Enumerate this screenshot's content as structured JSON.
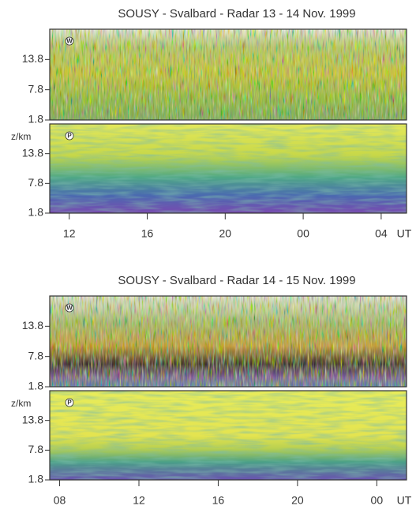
{
  "chart_data": [
    {
      "type": "heatmap",
      "title": "SOUSY - Svalbard - Radar   13 - 14 Nov. 1999",
      "panels": [
        {
          "label": "W"
        },
        {
          "label": "P"
        }
      ],
      "ylabel": "z/km",
      "ylim": [
        1.8,
        19.8
      ],
      "yticks": [
        1.8,
        7.8,
        13.8
      ],
      "xlabel": "UT",
      "xlim": [
        11,
        29.3
      ],
      "xticks": [
        12,
        16,
        20,
        {
          "value": 24,
          "label": "00"
        },
        {
          "value": 28,
          "label": "04"
        }
      ]
    },
    {
      "type": "heatmap",
      "title": "SOUSY - Svalbard - Radar   14 - 15 Nov. 1999",
      "panels": [
        {
          "label": "W"
        },
        {
          "label": "P"
        }
      ],
      "ylabel": "z/km",
      "ylim": [
        1.8,
        19.8
      ],
      "yticks": [
        1.8,
        7.8,
        13.8
      ],
      "xlabel": "UT",
      "xlim": [
        7.5,
        25.5
      ],
      "xticks": [
        {
          "value": 8,
          "label": "08"
        },
        12,
        16,
        20,
        {
          "value": 24,
          "label": "00"
        }
      ]
    }
  ]
}
